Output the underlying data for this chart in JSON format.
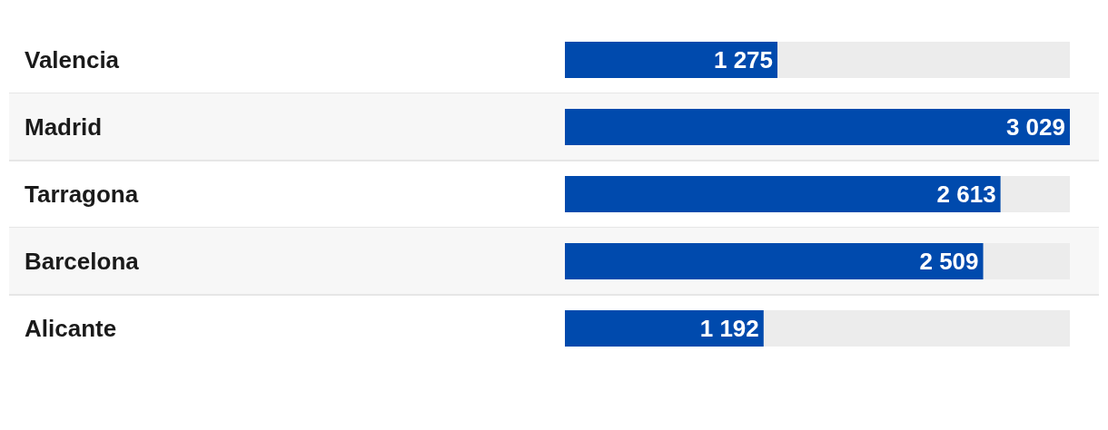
{
  "chart_data": {
    "type": "bar",
    "orientation": "horizontal",
    "categories": [
      "Valencia",
      "Madrid",
      "Tarragona",
      "Barcelona",
      "Alicante"
    ],
    "values": [
      1275,
      3029,
      2613,
      2509,
      1192
    ],
    "value_labels": [
      "1 275",
      "3 029",
      "2 613",
      "2 509",
      "1 192"
    ],
    "color": "#004aad",
    "xlim": [
      0,
      3029
    ],
    "tick_labels": "y"
  }
}
